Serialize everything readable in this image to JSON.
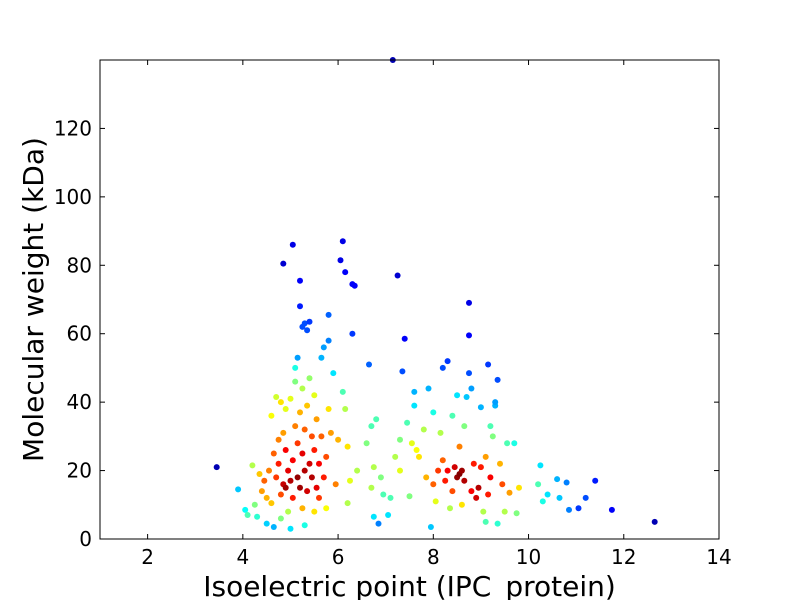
{
  "chart_data": {
    "type": "scatter",
    "xlabel": "Isoelectric point (IPC_protein)",
    "ylabel": "Molecular weight (kDa)",
    "xlim": [
      1,
      14
    ],
    "ylim": [
      0,
      140
    ],
    "x_ticks": [
      2,
      4,
      6,
      8,
      10,
      12,
      14
    ],
    "y_ticks": [
      0,
      20,
      40,
      60,
      80,
      100,
      120
    ],
    "x_tick_labels": [
      "2",
      "4",
      "6",
      "8",
      "10",
      "12",
      "14"
    ],
    "y_tick_labels": [
      "0",
      "20",
      "40",
      "60",
      "80",
      "100",
      "120"
    ],
    "grid": false,
    "legend": "none",
    "colormap": "jet (point density)",
    "points": [
      [
        3.45,
        21,
        0.05
      ],
      [
        3.9,
        14.5,
        0.32
      ],
      [
        4.05,
        8.5,
        0.38
      ],
      [
        4.1,
        7,
        0.45
      ],
      [
        4.2,
        21.5,
        0.55
      ],
      [
        4.25,
        10,
        0.5
      ],
      [
        4.3,
        6.5,
        0.42
      ],
      [
        4.35,
        19,
        0.68
      ],
      [
        4.4,
        14,
        0.72
      ],
      [
        4.45,
        17,
        0.78
      ],
      [
        4.5,
        4.5,
        0.33
      ],
      [
        4.5,
        12,
        0.7
      ],
      [
        4.55,
        20,
        0.75
      ],
      [
        4.6,
        36,
        0.62
      ],
      [
        4.6,
        10.5,
        0.68
      ],
      [
        4.65,
        3.5,
        0.3
      ],
      [
        4.65,
        25,
        0.78
      ],
      [
        4.7,
        41.5,
        0.58
      ],
      [
        4.7,
        18,
        0.82
      ],
      [
        4.75,
        29,
        0.75
      ],
      [
        4.75,
        22,
        0.85
      ],
      [
        4.8,
        13,
        0.8
      ],
      [
        4.8,
        40,
        0.65
      ],
      [
        4.8,
        6,
        0.5
      ],
      [
        4.85,
        16,
        0.93
      ],
      [
        4.85,
        31,
        0.72
      ],
      [
        4.85,
        80.5,
        0.08
      ],
      [
        4.9,
        38,
        0.6
      ],
      [
        4.9,
        26,
        0.88
      ],
      [
        4.9,
        15,
        0.97
      ],
      [
        4.95,
        20,
        0.9
      ],
      [
        4.95,
        8,
        0.55
      ],
      [
        5.0,
        17,
        0.95
      ],
      [
        5.0,
        41,
        0.6
      ],
      [
        5.0,
        3,
        0.35
      ],
      [
        5.05,
        86,
        0.1
      ],
      [
        5.05,
        12,
        0.85
      ],
      [
        5.05,
        23,
        0.88
      ],
      [
        5.1,
        46,
        0.5
      ],
      [
        5.1,
        33,
        0.75
      ],
      [
        5.1,
        50,
        0.4
      ],
      [
        5.15,
        53,
        0.28
      ],
      [
        5.15,
        18,
        0.98
      ],
      [
        5.15,
        28,
        0.82
      ],
      [
        5.2,
        75.5,
        0.12
      ],
      [
        5.2,
        68,
        0.15
      ],
      [
        5.2,
        37,
        0.7
      ],
      [
        5.2,
        15,
        0.97
      ],
      [
        5.25,
        62,
        0.2
      ],
      [
        5.25,
        44,
        0.55
      ],
      [
        5.25,
        9,
        0.7
      ],
      [
        5.25,
        25,
        0.9
      ],
      [
        5.3,
        63,
        0.2
      ],
      [
        5.3,
        20,
        0.95
      ],
      [
        5.3,
        32,
        0.78
      ],
      [
        5.3,
        4,
        0.4
      ],
      [
        5.35,
        61,
        0.2
      ],
      [
        5.35,
        14,
        0.92
      ],
      [
        5.35,
        39,
        0.68
      ],
      [
        5.4,
        63.5,
        0.18
      ],
      [
        5.4,
        22,
        0.92
      ],
      [
        5.4,
        47,
        0.52
      ],
      [
        5.45,
        18,
        0.95
      ],
      [
        5.45,
        30,
        0.8
      ],
      [
        5.5,
        8,
        0.65
      ],
      [
        5.5,
        42,
        0.6
      ],
      [
        5.5,
        26,
        0.85
      ],
      [
        5.55,
        15,
        0.9
      ],
      [
        5.55,
        35,
        0.72
      ],
      [
        5.6,
        22,
        0.88
      ],
      [
        5.6,
        12,
        0.82
      ],
      [
        5.65,
        53,
        0.3
      ],
      [
        5.65,
        30,
        0.78
      ],
      [
        5.7,
        56,
        0.28
      ],
      [
        5.7,
        18,
        0.85
      ],
      [
        5.75,
        9,
        0.62
      ],
      [
        5.75,
        24,
        0.8
      ],
      [
        5.8,
        65.5,
        0.22
      ],
      [
        5.8,
        58,
        0.25
      ],
      [
        5.8,
        38,
        0.65
      ],
      [
        5.85,
        31,
        0.72
      ],
      [
        5.9,
        48.5,
        0.35
      ],
      [
        5.95,
        16,
        0.75
      ],
      [
        6.0,
        29,
        0.7
      ],
      [
        6.05,
        81.5,
        0.1
      ],
      [
        6.1,
        87,
        0.1
      ],
      [
        6.1,
        43,
        0.45
      ],
      [
        6.15,
        78,
        0.12
      ],
      [
        6.15,
        38,
        0.55
      ],
      [
        6.2,
        10.5,
        0.55
      ],
      [
        6.2,
        27,
        0.65
      ],
      [
        6.25,
        17,
        0.6
      ],
      [
        6.3,
        60,
        0.18
      ],
      [
        6.3,
        74.5,
        0.12
      ],
      [
        6.35,
        74,
        0.12
      ],
      [
        6.4,
        20,
        0.55
      ],
      [
        6.6,
        28,
        0.5
      ],
      [
        6.65,
        51,
        0.22
      ],
      [
        6.7,
        15,
        0.55
      ],
      [
        6.7,
        33,
        0.45
      ],
      [
        6.75,
        6.5,
        0.35
      ],
      [
        6.75,
        21,
        0.55
      ],
      [
        6.8,
        35,
        0.45
      ],
      [
        6.85,
        4.5,
        0.25
      ],
      [
        6.9,
        18,
        0.5
      ],
      [
        6.95,
        13,
        0.45
      ],
      [
        7.05,
        7,
        0.35
      ],
      [
        7.1,
        12,
        0.45
      ],
      [
        7.15,
        140,
        0.05
      ],
      [
        7.2,
        24,
        0.55
      ],
      [
        7.25,
        77,
        0.08
      ],
      [
        7.3,
        29,
        0.5
      ],
      [
        7.3,
        20,
        0.6
      ],
      [
        7.35,
        49,
        0.2
      ],
      [
        7.4,
        58.5,
        0.12
      ],
      [
        7.45,
        34,
        0.45
      ],
      [
        7.5,
        12.5,
        0.5
      ],
      [
        7.55,
        28,
        0.6
      ],
      [
        7.6,
        39,
        0.35
      ],
      [
        7.6,
        43,
        0.3
      ],
      [
        7.65,
        26,
        0.62
      ],
      [
        7.7,
        24,
        0.65
      ],
      [
        7.8,
        32,
        0.55
      ],
      [
        7.85,
        18,
        0.7
      ],
      [
        7.9,
        44,
        0.3
      ],
      [
        7.95,
        3.5,
        0.32
      ],
      [
        8.0,
        16,
        0.78
      ],
      [
        8.0,
        37,
        0.4
      ],
      [
        8.05,
        11,
        0.6
      ],
      [
        8.1,
        20,
        0.82
      ],
      [
        8.15,
        31,
        0.55
      ],
      [
        8.2,
        50,
        0.2
      ],
      [
        8.2,
        23,
        0.78
      ],
      [
        8.25,
        17,
        0.85
      ],
      [
        8.3,
        52,
        0.18
      ],
      [
        8.3,
        20,
        0.88
      ],
      [
        8.35,
        9,
        0.55
      ],
      [
        8.4,
        36,
        0.45
      ],
      [
        8.4,
        14,
        0.8
      ],
      [
        8.45,
        21,
        0.92
      ],
      [
        8.5,
        42,
        0.35
      ],
      [
        8.5,
        18,
        0.98
      ],
      [
        8.55,
        19,
        1.0
      ],
      [
        8.55,
        27,
        0.75
      ],
      [
        8.6,
        10,
        0.65
      ],
      [
        8.6,
        20,
        0.97
      ],
      [
        8.65,
        17,
        0.95
      ],
      [
        8.65,
        33,
        0.5
      ],
      [
        8.7,
        41.5,
        0.32
      ],
      [
        8.75,
        69,
        0.1
      ],
      [
        8.75,
        59.5,
        0.12
      ],
      [
        8.75,
        48.5,
        0.2
      ],
      [
        8.8,
        44,
        0.28
      ],
      [
        8.8,
        14,
        0.88
      ],
      [
        8.85,
        22,
        0.85
      ],
      [
        8.9,
        12,
        0.92
      ],
      [
        8.95,
        15,
        0.95
      ],
      [
        9.0,
        38.5,
        0.3
      ],
      [
        9.0,
        21,
        0.85
      ],
      [
        9.05,
        8,
        0.55
      ],
      [
        9.1,
        24,
        0.72
      ],
      [
        9.1,
        5,
        0.45
      ],
      [
        9.15,
        51,
        0.18
      ],
      [
        9.15,
        13,
        0.85
      ],
      [
        9.2,
        33,
        0.45
      ],
      [
        9.2,
        18,
        0.88
      ],
      [
        9.25,
        30,
        0.5
      ],
      [
        9.3,
        39,
        0.3
      ],
      [
        9.3,
        40,
        0.28
      ],
      [
        9.35,
        46.5,
        0.2
      ],
      [
        9.35,
        4.5,
        0.42
      ],
      [
        9.4,
        22,
        0.7
      ],
      [
        9.45,
        16,
        0.8
      ],
      [
        9.5,
        8,
        0.55
      ],
      [
        9.55,
        28,
        0.45
      ],
      [
        9.6,
        13.5,
        0.72
      ],
      [
        9.7,
        28,
        0.4
      ],
      [
        9.75,
        7.5,
        0.5
      ],
      [
        9.8,
        15,
        0.65
      ],
      [
        10.2,
        16,
        0.45
      ],
      [
        10.25,
        21.5,
        0.35
      ],
      [
        10.3,
        11,
        0.4
      ],
      [
        10.4,
        13,
        0.35
      ],
      [
        10.6,
        17.5,
        0.3
      ],
      [
        10.65,
        12,
        0.32
      ],
      [
        10.8,
        16.5,
        0.25
      ],
      [
        10.85,
        8.5,
        0.25
      ],
      [
        11.05,
        9,
        0.18
      ],
      [
        11.2,
        12,
        0.2
      ],
      [
        11.4,
        17,
        0.15
      ],
      [
        11.75,
        8.5,
        0.12
      ],
      [
        12.65,
        5,
        0.05
      ]
    ]
  }
}
